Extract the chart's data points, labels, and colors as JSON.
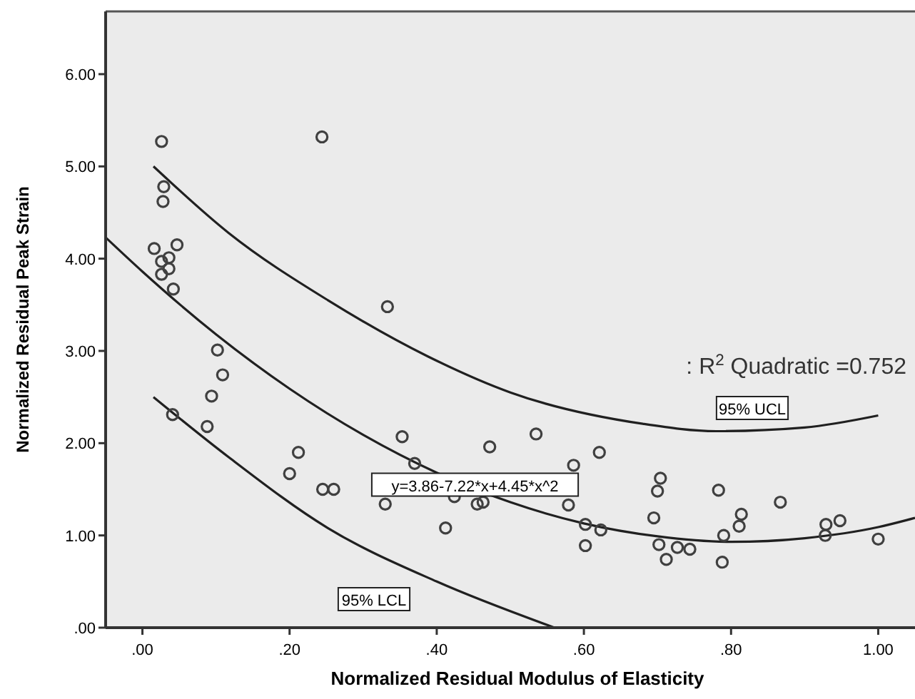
{
  "chart_data": {
    "type": "scatter",
    "xlabel": "Normalized Residual Modulus of Elasticity",
    "ylabel": "Normalized Residual Peak Strain",
    "xlim": [
      -0.05,
      1.05
    ],
    "ylim": [
      0,
      6.68
    ],
    "xticks": [
      {
        "value": 0,
        "label": ".00"
      },
      {
        "value": 0.2,
        "label": ".20"
      },
      {
        "value": 0.4,
        "label": ".40"
      },
      {
        "value": 0.6,
        "label": ".60"
      },
      {
        "value": 0.8,
        "label": ".80"
      },
      {
        "value": 1,
        "label": "1.00"
      }
    ],
    "yticks": [
      {
        "value": 0,
        "label": ".00"
      },
      {
        "value": 1,
        "label": "1.00"
      },
      {
        "value": 2,
        "label": "2.00"
      },
      {
        "value": 3,
        "label": "3.00"
      },
      {
        "value": 4,
        "label": "4.00"
      },
      {
        "value": 5,
        "label": "5.00"
      },
      {
        "value": 6,
        "label": "6.00"
      }
    ],
    "grid": false,
    "series": [
      {
        "color": "#404040",
        "marker": "circle",
        "x": [
          0.026,
          0.244,
          0.029,
          0.028,
          0.016,
          0.047,
          0.036,
          0.026,
          0.036,
          0.026,
          0.042,
          0.333,
          0.102,
          0.109,
          0.094,
          0.041,
          0.088,
          0.353,
          0.212,
          0.2,
          0.37,
          0.472,
          0.535,
          0.621,
          0.586,
          0.245,
          0.26,
          0.33,
          0.424,
          0.455,
          0.463,
          0.579,
          0.602,
          0.623,
          0.602,
          0.412,
          0.704,
          0.7,
          0.783,
          0.867,
          0.695,
          0.814,
          0.811,
          0.79,
          0.702,
          0.727,
          0.744,
          0.712,
          0.788,
          0.929,
          0.948,
          0.928,
          1.0
        ],
        "values": [
          5.27,
          5.32,
          4.78,
          4.62,
          4.11,
          4.15,
          4.01,
          3.97,
          3.89,
          3.83,
          3.67,
          3.48,
          3.01,
          2.74,
          2.51,
          2.31,
          2.18,
          2.07,
          1.9,
          1.67,
          1.78,
          1.96,
          2.1,
          1.9,
          1.76,
          1.5,
          1.5,
          1.34,
          1.42,
          1.34,
          1.36,
          1.33,
          1.12,
          1.06,
          0.89,
          1.08,
          1.62,
          1.48,
          1.49,
          1.36,
          1.19,
          1.23,
          1.1,
          1.0,
          0.9,
          0.87,
          0.85,
          0.74,
          0.71,
          1.12,
          1.16,
          1.0,
          0.96
        ]
      },
      {
        "type": "line",
        "color": "#202020",
        "marker": "none",
        "x": [
          -0.05,
          0,
          0.1,
          0.2,
          0.3,
          0.4,
          0.5,
          0.6,
          0.7,
          0.8,
          0.9,
          1.0,
          1.05
        ],
        "values": [
          4.23,
          3.86,
          3.18,
          2.59,
          2.09,
          1.68,
          1.36,
          1.13,
          0.99,
          0.93,
          0.97,
          1.09,
          1.19
        ]
      },
      {
        "type": "line",
        "color": "#202020",
        "marker": "none",
        "x": [
          0.015,
          0.117,
          0.252,
          0.388,
          0.5,
          0.68,
          0.78,
          0.9,
          1.0
        ],
        "values": [
          5.0,
          4.28,
          3.55,
          2.94,
          2.55,
          2.21,
          2.13,
          2.17,
          2.3
        ]
      },
      {
        "type": "line",
        "color": "#202020",
        "marker": "none",
        "x": [
          0.015,
          0.117,
          0.252,
          0.4,
          0.56
        ],
        "values": [
          2.5,
          1.85,
          1.08,
          0.5,
          0
        ]
      }
    ],
    "annotations": [
      "95% UCL",
      "95% LCL",
      {
        "text": "y=3.86-7.22*x+4.45*x^2",
        "x": 0.452,
        "y": 1.55
      },
      ": R$^{2}$ Quadratic =0.752"
    ]
  }
}
